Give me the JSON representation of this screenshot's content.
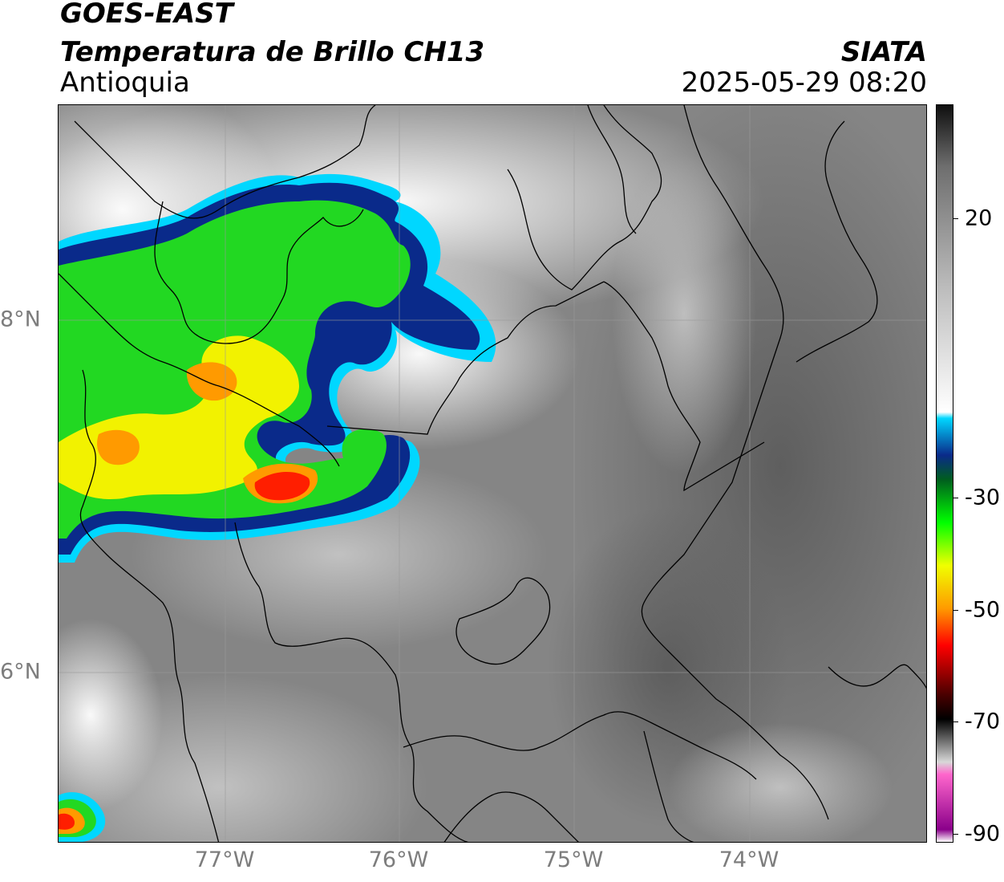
{
  "header": {
    "satellite": "GOES-EAST",
    "product": "Temperatura de Brillo CH13",
    "region": "Antioquia",
    "organization": "SIATA",
    "timestamp": "2025-05-29 08:20"
  },
  "map": {
    "lon_ticks": [
      "77°W",
      "76°W",
      "75°W",
      "74°W"
    ],
    "lat_ticks": [
      "8°N",
      "6°N"
    ],
    "gridlines": true
  },
  "colorbar": {
    "ticks": [
      "20",
      "-30",
      "-50",
      "-70",
      "-90"
    ],
    "stops": [
      {
        "value": 30,
        "color": "#0f0f0f"
      },
      {
        "value": 20,
        "color": "#6e6e6e"
      },
      {
        "value": 0,
        "color": "#bdbdbd"
      },
      {
        "value": -20,
        "color": "#ffffff"
      },
      {
        "value": -21,
        "color": "#00d7ff"
      },
      {
        "value": -27,
        "color": "#0a2a8a"
      },
      {
        "value": -31,
        "color": "#005e1e"
      },
      {
        "value": -38,
        "color": "#00ff00"
      },
      {
        "value": -45,
        "color": "#f0ff00"
      },
      {
        "value": -52,
        "color": "#ff9a00"
      },
      {
        "value": -58,
        "color": "#ff0000"
      },
      {
        "value": -66,
        "color": "#4a0000"
      },
      {
        "value": -70,
        "color": "#000000"
      },
      {
        "value": -77,
        "color": "#d8d8d8"
      },
      {
        "value": -79,
        "color": "#ff66cc"
      },
      {
        "value": -88,
        "color": "#8a008a"
      },
      {
        "value": -90,
        "color": "#ffffff"
      }
    ],
    "colors": {
      "ocean_gray": "#6a6a6a",
      "cloud_white": "#f2f2f2",
      "cold_blue": "#0a2a8a",
      "cyan_edge": "#00d7ff",
      "green": "#22d822",
      "yellow": "#f2f200",
      "orange": "#ff9a00",
      "red": "#ff1e00"
    }
  }
}
